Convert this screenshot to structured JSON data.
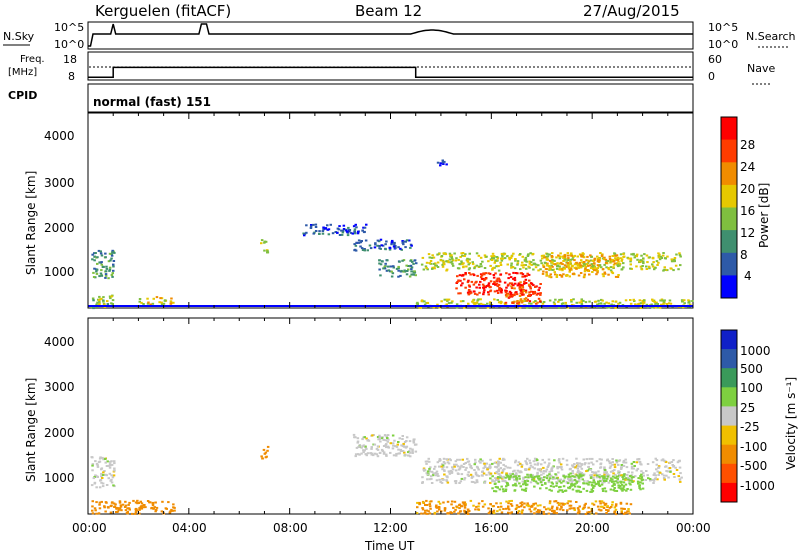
{
  "header": {
    "station": "Kerguelen (fitACF)",
    "beam": "Beam 12",
    "date": "27/Aug/2015"
  },
  "nsky_panel": {
    "label": "N.Sky",
    "left_ticks": [
      "10^5",
      "10^0"
    ],
    "right_ticks": [
      "10^5",
      "10^0"
    ],
    "right_label": "N.Search"
  },
  "freq_panel": {
    "label_line1": "Freq.",
    "label_line2": "[MHz]",
    "left_ticks": [
      "18",
      "8"
    ],
    "right_ticks": [
      "60",
      "0"
    ],
    "right_label": "Nave"
  },
  "cpid_panel": {
    "label": "CPID",
    "value": "normal (fast) 151"
  },
  "power_panel": {
    "ylabel": "Slant Range [km]",
    "y_ticks": [
      "4000",
      "3000",
      "2000",
      "1000"
    ],
    "colorbar_label": "Power [dB]",
    "colorbar_ticks": [
      "28",
      "24",
      "20",
      "16",
      "12",
      "8",
      "4"
    ],
    "colors": [
      "#0000ff",
      "#2e5aa8",
      "#3f8f6f",
      "#7fbf3f",
      "#e6c800",
      "#f08c00",
      "#ff3c00",
      "#ff0000"
    ]
  },
  "velocity_panel": {
    "ylabel": "Slant Range [km]",
    "y_ticks": [
      "4000",
      "3000",
      "2000",
      "1000"
    ],
    "colorbar_label": "Velocity [m s⁻¹]",
    "colorbar_ticks": [
      "1000",
      "500",
      "100",
      "25",
      "-25",
      "-100",
      "-500",
      "-1000"
    ],
    "colors": [
      "#1020c8",
      "#2e5aa8",
      "#3a9a5a",
      "#7ed040",
      "#c8c8c8",
      "#f0c000",
      "#f08c00",
      "#ff5000",
      "#ff0000"
    ]
  },
  "xaxis": {
    "label": "Time UT",
    "ticks": [
      "00:00",
      "04:00",
      "08:00",
      "12:00",
      "16:00",
      "20:00",
      "00:00"
    ]
  },
  "chart_data": {
    "type": "heatmap",
    "title": "Kerguelen (fitACF) Beam 12 27/Aug/2015",
    "xlabel": "Time UT",
    "ylabel": "Slant Range [km]",
    "x_range_hours": [
      0,
      24
    ],
    "y_range_km": [
      180,
      4600
    ],
    "power_range_db": [
      0,
      32
    ],
    "velocity_range": [
      -1000,
      1000
    ],
    "frequency_steps": [
      {
        "start": 0,
        "end": 1.0,
        "freq": 9
      },
      {
        "start": 1.0,
        "end": 13.0,
        "freq": 12.5
      },
      {
        "start": 13.0,
        "end": 24,
        "freq": 9
      }
    ],
    "power_regions": [
      {
        "t": [
          0.1,
          1.0
        ],
        "r": [
          200,
          500
        ],
        "power": 14
      },
      {
        "t": [
          2.0,
          3.4
        ],
        "r": [
          280,
          450
        ],
        "power": 18
      },
      {
        "t": [
          0.1,
          1.0
        ],
        "r": [
          850,
          1500
        ],
        "power": 10
      },
      {
        "t": [
          6.8,
          7.1
        ],
        "r": [
          1450,
          1750
        ],
        "power": 16
      },
      {
        "t": [
          8.5,
          11.0
        ],
        "r": [
          1850,
          2100
        ],
        "power": 6
      },
      {
        "t": [
          10.5,
          12.8
        ],
        "r": [
          1500,
          1750
        ],
        "power": 6
      },
      {
        "t": [
          11.5,
          13.0
        ],
        "r": [
          900,
          1300
        ],
        "power": 10
      },
      {
        "t": [
          13.0,
          24.0
        ],
        "r": [
          200,
          400
        ],
        "power": 16
      },
      {
        "t": [
          13.2,
          23.5
        ],
        "r": [
          1050,
          1450
        ],
        "power": 16
      },
      {
        "t": [
          14.5,
          17.5
        ],
        "r": [
          500,
          1000
        ],
        "power": 28
      },
      {
        "t": [
          16.5,
          18.0
        ],
        "r": [
          300,
          800
        ],
        "power": 26
      },
      {
        "t": [
          18.0,
          21.0
        ],
        "r": [
          900,
          1400
        ],
        "power": 20
      },
      {
        "t": [
          13.8,
          14.2
        ],
        "r": [
          3400,
          3550
        ],
        "power": 4
      }
    ],
    "velocity_regions": [
      {
        "t": [
          0.1,
          1.0
        ],
        "r": [
          800,
          1500
        ],
        "velocity": 0
      },
      {
        "t": [
          0.1,
          3.4
        ],
        "r": [
          200,
          500
        ],
        "velocity": -150
      },
      {
        "t": [
          6.8,
          7.1
        ],
        "r": [
          1450,
          1750
        ],
        "velocity": -200
      },
      {
        "t": [
          10.5,
          13.0
        ],
        "r": [
          1500,
          2000
        ],
        "velocity": 0
      },
      {
        "t": [
          13.2,
          23.5
        ],
        "r": [
          900,
          1450
        ],
        "velocity": 0
      },
      {
        "t": [
          16.0,
          22.0
        ],
        "r": [
          700,
          1100
        ],
        "velocity": 60
      },
      {
        "t": [
          13.0,
          21.5
        ],
        "r": [
          200,
          500
        ],
        "velocity": -120
      }
    ]
  }
}
